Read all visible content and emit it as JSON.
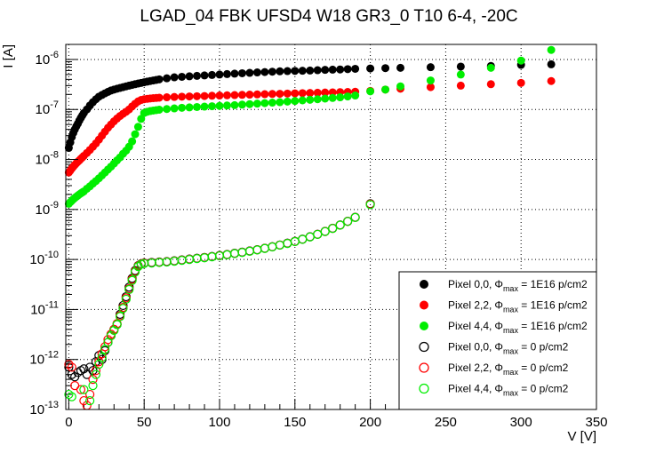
{
  "chart_data": {
    "type": "scatter",
    "title": "LGAD_04 FBK UFSD4 W18 GR3_0 T10 6-4, -20C",
    "xlabel": "V [V]",
    "ylabel": "I [A]",
    "xlim": [
      -2,
      350
    ],
    "ylim": [
      1e-13,
      2e-06
    ],
    "yscale": "log",
    "grid": true,
    "legend_position": "bottom-right",
    "x_ticks": [
      0,
      50,
      100,
      150,
      200,
      250,
      300,
      350
    ],
    "x_tick_labels": [
      "0",
      "50",
      "100",
      "150",
      "200",
      "250",
      "300",
      "350"
    ],
    "y_ticks": [
      {
        "value": 1e-13,
        "base": "10",
        "exp": "-13"
      },
      {
        "value": 1e-12,
        "base": "10",
        "exp": "-12"
      },
      {
        "value": 1e-11,
        "base": "10",
        "exp": "-11"
      },
      {
        "value": 1e-10,
        "base": "10",
        "exp": "-10"
      },
      {
        "value": 1e-09,
        "base": "10",
        "exp": "-9"
      },
      {
        "value": 1e-08,
        "base": "10",
        "exp": "-8"
      },
      {
        "value": 1e-07,
        "base": "10",
        "exp": "-7"
      },
      {
        "value": 1e-06,
        "base": "10",
        "exp": "-6"
      }
    ],
    "series": [
      {
        "name": "Pixel 0,0, Φmax = 1E16 p/cm2",
        "label_main": "Pixel 0,0,",
        "label_rest": " = 1E16 p/cm2",
        "color": "#000000",
        "filled": true,
        "x": [
          0,
          1,
          2,
          3,
          4,
          5,
          6,
          7,
          8,
          9,
          10,
          12,
          14,
          16,
          18,
          20,
          22,
          24,
          26,
          28,
          30,
          32,
          34,
          36,
          38,
          40,
          42,
          44,
          46,
          48,
          50,
          52,
          54,
          56,
          58,
          60,
          65,
          70,
          75,
          80,
          85,
          90,
          95,
          100,
          105,
          110,
          115,
          120,
          125,
          130,
          135,
          140,
          145,
          150,
          155,
          160,
          165,
          170,
          175,
          180,
          185,
          190,
          200,
          210,
          220,
          240,
          260,
          280,
          300,
          320
        ],
        "y": [
          1.7e-08,
          2.2e-08,
          2.8e-08,
          3.4e-08,
          4e-08,
          4.6e-08,
          5.2e-08,
          6e-08,
          6.8e-08,
          7.6e-08,
          8.5e-08,
          1e-07,
          1.2e-07,
          1.4e-07,
          1.6e-07,
          1.8e-07,
          1.95e-07,
          2.1e-07,
          2.25e-07,
          2.4e-07,
          2.5e-07,
          2.6e-07,
          2.7e-07,
          2.8e-07,
          2.9e-07,
          3e-07,
          3.1e-07,
          3.2e-07,
          3.3e-07,
          3.4e-07,
          3.5e-07,
          3.6e-07,
          3.7e-07,
          3.8e-07,
          3.9e-07,
          4e-07,
          4.2e-07,
          4.4e-07,
          4.5e-07,
          4.6e-07,
          4.7e-07,
          4.8e-07,
          4.9e-07,
          5e-07,
          5.1e-07,
          5.2e-07,
          5.3e-07,
          5.4e-07,
          5.5e-07,
          5.6e-07,
          5.7e-07,
          5.8e-07,
          5.85e-07,
          5.9e-07,
          5.95e-07,
          6e-07,
          6.1e-07,
          6.2e-07,
          6.25e-07,
          6.3e-07,
          6.4e-07,
          6.5e-07,
          6.6e-07,
          6.7e-07,
          6.8e-07,
          7e-07,
          7.2e-07,
          7.4e-07,
          7.8e-07,
          8e-07
        ]
      },
      {
        "name": "Pixel 2,2, Φmax = 1E16 p/cm2",
        "label_main": "Pixel 2,2,",
        "label_rest": " = 1E16 p/cm2",
        "color": "#ff0000",
        "filled": true,
        "x": [
          0,
          1,
          2,
          3,
          4,
          5,
          6,
          7,
          8,
          9,
          10,
          12,
          14,
          16,
          18,
          20,
          22,
          24,
          26,
          28,
          30,
          32,
          34,
          36,
          38,
          40,
          42,
          44,
          46,
          48,
          50,
          52,
          54,
          56,
          58,
          60,
          65,
          70,
          75,
          80,
          85,
          90,
          95,
          100,
          105,
          110,
          115,
          120,
          125,
          130,
          135,
          140,
          145,
          150,
          155,
          160,
          165,
          170,
          175,
          180,
          185,
          190,
          200,
          210,
          220,
          240,
          260,
          280,
          300,
          320
        ],
        "y": [
          5.5e-09,
          6e-09,
          6.6e-09,
          7.2e-09,
          7.8e-09,
          8.4e-09,
          9e-09,
          9.6e-09,
          1.03e-08,
          1.1e-08,
          1.18e-08,
          1.35e-08,
          1.55e-08,
          1.8e-08,
          2.1e-08,
          2.5e-08,
          3e-08,
          3.6e-08,
          4.3e-08,
          5e-08,
          5.8e-08,
          6.6e-08,
          7.4e-08,
          8.2e-08,
          9e-08,
          1e-07,
          1.15e-07,
          1.3e-07,
          1.45e-07,
          1.55e-07,
          1.6e-07,
          1.63e-07,
          1.66e-07,
          1.68e-07,
          1.7e-07,
          1.72e-07,
          1.75e-07,
          1.78e-07,
          1.8e-07,
          1.82e-07,
          1.84e-07,
          1.86e-07,
          1.88e-07,
          1.9e-07,
          1.92e-07,
          1.94e-07,
          1.96e-07,
          1.98e-07,
          2e-07,
          2.02e-07,
          2.04e-07,
          2.06e-07,
          2.08e-07,
          2.1e-07,
          2.12e-07,
          2.14e-07,
          2.16e-07,
          2.18e-07,
          2.2e-07,
          2.22e-07,
          2.24e-07,
          2.26e-07,
          2.35e-07,
          2.5e-07,
          2.6e-07,
          2.8e-07,
          3e-07,
          3.2e-07,
          3.4e-07,
          3.7e-07
        ]
      },
      {
        "name": "Pixel 4,4, Φmax = 1E16 p/cm2",
        "label_main": "Pixel 4,4,",
        "label_rest": " = 1E16 p/cm2",
        "color": "#00ee00",
        "filled": true,
        "x": [
          0,
          1,
          2,
          3,
          4,
          5,
          6,
          7,
          8,
          9,
          10,
          12,
          14,
          16,
          18,
          20,
          22,
          24,
          26,
          28,
          30,
          32,
          34,
          36,
          38,
          40,
          42,
          44,
          46,
          48,
          50,
          52,
          54,
          56,
          58,
          60,
          65,
          70,
          75,
          80,
          85,
          90,
          95,
          100,
          105,
          110,
          115,
          120,
          125,
          130,
          135,
          140,
          145,
          150,
          155,
          160,
          165,
          170,
          175,
          180,
          185,
          190,
          200,
          210,
          220,
          240,
          260,
          280,
          300,
          320
        ],
        "y": [
          1.3e-09,
          1.4e-09,
          1.5e-09,
          1.6e-09,
          1.7e-09,
          1.8e-09,
          1.9e-09,
          2e-09,
          2.1e-09,
          2.2e-09,
          2.3e-09,
          2.6e-09,
          2.9e-09,
          3.3e-09,
          3.7e-09,
          4.2e-09,
          4.8e-09,
          5.5e-09,
          6.3e-09,
          7.2e-09,
          8.3e-09,
          9.6e-09,
          1.1e-08,
          1.3e-08,
          1.5e-08,
          1.8e-08,
          2.3e-08,
          3.2e-08,
          4.5e-08,
          6.5e-08,
          8.5e-08,
          9e-08,
          9.3e-08,
          9.5e-08,
          9.7e-08,
          9.9e-08,
          1.02e-07,
          1.05e-07,
          1.08e-07,
          1.1e-07,
          1.12e-07,
          1.14e-07,
          1.16e-07,
          1.18e-07,
          1.2e-07,
          1.22e-07,
          1.25e-07,
          1.28e-07,
          1.31e-07,
          1.34e-07,
          1.37e-07,
          1.4e-07,
          1.44e-07,
          1.48e-07,
          1.52e-07,
          1.56e-07,
          1.6e-07,
          1.65e-07,
          1.7e-07,
          1.75e-07,
          1.82e-07,
          1.9e-07,
          2.3e-07,
          2.5e-07,
          2.9e-07,
          3.8e-07,
          5e-07,
          6.8e-07,
          9.5e-07,
          1.55e-06
        ]
      },
      {
        "name": "Pixel 0,0, Φmax = 0 p/cm2",
        "label_main": "Pixel 0,0,",
        "label_rest": " = 0 p/cm2",
        "color": "#000000",
        "filled": false,
        "x": [
          0,
          2,
          4,
          6,
          8,
          10,
          12,
          14,
          16,
          18,
          20,
          22,
          24,
          26,
          28,
          30,
          32,
          34,
          36,
          38,
          40,
          42,
          44,
          46,
          48,
          50,
          55,
          60,
          65,
          70,
          75,
          80,
          85,
          90,
          95,
          100,
          105,
          110,
          115,
          120,
          125,
          130,
          135,
          140,
          145,
          150,
          155,
          160,
          165,
          170,
          175,
          180,
          185,
          190,
          200
        ],
        "y": [
          7e-13,
          5e-13,
          4.5e-13,
          5.5e-13,
          6e-13,
          6.5e-13,
          5e-13,
          7e-13,
          6e-13,
          9e-13,
          1.2e-12,
          1e-12,
          1.5e-12,
          2.2e-12,
          3e-12,
          4e-12,
          5e-12,
          8e-12,
          1.2e-11,
          1.8e-11,
          2.8e-11,
          4.2e-11,
          6e-11,
          7.5e-11,
          8.2e-11,
          8.5e-11,
          8.7e-11,
          8.9e-11,
          9.1e-11,
          9.4e-11,
          9.8e-11,
          1.02e-10,
          1.06e-10,
          1.1e-10,
          1.15e-10,
          1.2e-10,
          1.26e-10,
          1.33e-10,
          1.4e-10,
          1.48e-10,
          1.57e-10,
          1.68e-10,
          1.8e-10,
          1.95e-10,
          2.12e-10,
          2.3e-10,
          2.55e-10,
          2.85e-10,
          3.2e-10,
          3.65e-10,
          4.2e-10,
          4.9e-10,
          5.8e-10,
          7e-10,
          1.3e-09
        ]
      },
      {
        "name": "Pixel 2,2, Φmax = 0 p/cm2",
        "label_main": "Pixel 2,2,",
        "label_rest": " = 0 p/cm2",
        "color": "#ff0000",
        "filled": false,
        "x": [
          0,
          2,
          4,
          8,
          10,
          12,
          14,
          16,
          18,
          20,
          22,
          24,
          26,
          28,
          30,
          32,
          34,
          36,
          38,
          40,
          42,
          44,
          46,
          48,
          50,
          55,
          60,
          65,
          70,
          75,
          80,
          85,
          90,
          95,
          100,
          105,
          110,
          115,
          120,
          125,
          130,
          135,
          140,
          145,
          150,
          155,
          160,
          165,
          170,
          175,
          180,
          185,
          190,
          200
        ],
        "y": [
          8e-13,
          7e-13,
          3e-13,
          2.5e-13,
          1.5e-13,
          1.2e-13,
          2e-13,
          4e-13,
          6e-13,
          9e-13,
          1.3e-12,
          1.8e-12,
          2.5e-12,
          3.2e-12,
          4e-12,
          5.2e-12,
          7.5e-12,
          1.1e-11,
          1.7e-11,
          2.6e-11,
          4e-11,
          5.8e-11,
          7.4e-11,
          8.1e-11,
          8.4e-11,
          8.6e-11,
          8.8e-11,
          9e-11,
          9.3e-11,
          9.7e-11,
          1.01e-10,
          1.05e-10,
          1.09e-10,
          1.14e-10,
          1.19e-10,
          1.25e-10,
          1.32e-10,
          1.39e-10,
          1.47e-10,
          1.56e-10,
          1.67e-10,
          1.79e-10,
          1.94e-10,
          2.1e-10,
          2.29e-10,
          2.53e-10,
          2.83e-10,
          3.18e-10,
          3.63e-10,
          4.18e-10,
          4.87e-10,
          5.77e-10,
          6.95e-10,
          1.28e-09
        ]
      },
      {
        "name": "Pixel 4,4, Φmax = 0 p/cm2",
        "label_main": "Pixel 4,4,",
        "label_rest": " = 0 p/cm2",
        "color": "#00ee00",
        "filled": false,
        "x": [
          0,
          2,
          10,
          14,
          16,
          18,
          20,
          22,
          24,
          26,
          28,
          30,
          32,
          34,
          36,
          38,
          40,
          42,
          44,
          46,
          48,
          50,
          55,
          60,
          65,
          70,
          75,
          80,
          85,
          90,
          95,
          100,
          105,
          110,
          115,
          120,
          125,
          130,
          135,
          140,
          145,
          150,
          155,
          160,
          165,
          170,
          175,
          180,
          185,
          190,
          200
        ],
        "y": [
          2e-13,
          1.8e-13,
          2.5e-13,
          1.5e-13,
          3e-13,
          5e-13,
          8e-13,
          1.1e-12,
          1.6e-12,
          2.2e-12,
          3e-12,
          3.8e-12,
          5e-12,
          7.2e-12,
          1.05e-11,
          1.6e-11,
          2.5e-11,
          3.8e-11,
          5.6e-11,
          7.2e-11,
          8e-11,
          8.3e-11,
          8.5e-11,
          8.7e-11,
          8.9e-11,
          9.2e-11,
          9.6e-11,
          1e-10,
          1.04e-10,
          1.08e-10,
          1.13e-10,
          1.18e-10,
          1.24e-10,
          1.31e-10,
          1.38e-10,
          1.46e-10,
          1.55e-10,
          1.66e-10,
          1.78e-10,
          1.93e-10,
          2.09e-10,
          2.28e-10,
          2.52e-10,
          2.82e-10,
          3.17e-10,
          3.62e-10,
          4.17e-10,
          4.86e-10,
          5.76e-10,
          6.9e-10,
          1.25e-09
        ]
      }
    ]
  }
}
